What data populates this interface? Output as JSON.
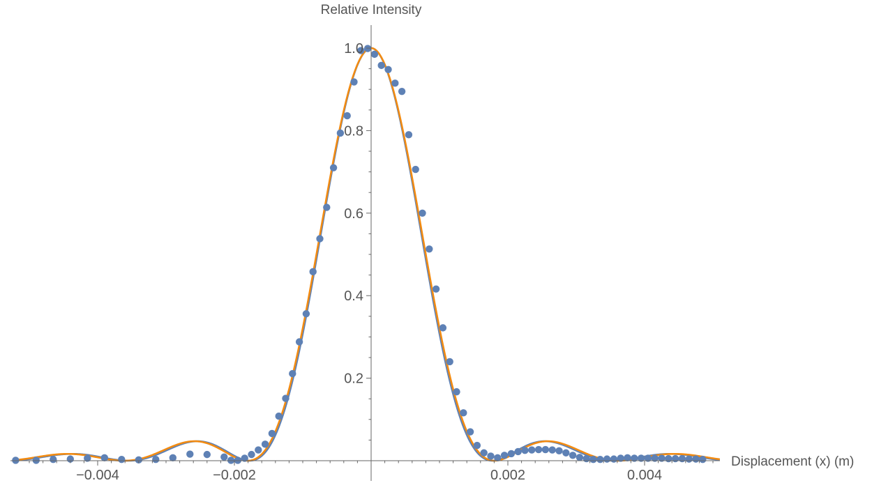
{
  "chart_data": {
    "type": "scatter",
    "xlabel": "Displacement (x) (m)",
    "ylabel": "Relative Intensity",
    "xlim": [
      -0.0051,
      0.0051
    ],
    "ylim": [
      0,
      1.05
    ],
    "grid": false,
    "legend": "none",
    "x_ticks": [
      {
        "value": -0.004,
        "label": "−0.004"
      },
      {
        "value": -0.002,
        "label": "−0.002"
      },
      {
        "value": 0.002,
        "label": "0.002"
      },
      {
        "value": 0.004,
        "label": "0.004"
      }
    ],
    "y_ticks": [
      {
        "value": 0.2,
        "label": "0.2"
      },
      {
        "value": 0.4,
        "label": "0.4"
      },
      {
        "value": 0.6,
        "label": "0.6"
      },
      {
        "value": 0.8,
        "label": "0.8"
      },
      {
        "value": 1.0,
        "label": "1.0"
      }
    ],
    "colors": {
      "points": "#5E81B5",
      "fit_blue": "#5E81B5",
      "fit_orange": "#F28B12",
      "axis": "#666666",
      "text": "#555555"
    },
    "series": [
      {
        "kind": "points",
        "color": "#5E81B5",
        "x": [
          -0.0052,
          -0.0049,
          -0.00465,
          -0.0044,
          -0.00415,
          -0.0039,
          -0.00365,
          -0.0034,
          -0.00315,
          -0.0029,
          -0.00265,
          -0.0024,
          -0.00215,
          -0.00205,
          -0.00195,
          -0.00185,
          -0.00175,
          -0.00165,
          -0.00155,
          -0.00145,
          -0.00135,
          -0.00125,
          -0.00115,
          -0.00105,
          -0.00095,
          -0.00085,
          -0.00075,
          -0.00065,
          -0.00055,
          -0.00045,
          -0.00035,
          -0.00025,
          -0.00015,
          -5e-05,
          5e-05,
          0.00015,
          0.00025,
          0.00035,
          0.00045,
          0.00055,
          0.00065,
          0.00075,
          0.00085,
          0.00095,
          0.00105,
          0.00115,
          0.00125,
          0.00135,
          0.00145,
          0.00155,
          0.00165,
          0.00175,
          0.00185,
          0.00195,
          0.00205,
          0.00215,
          0.00225,
          0.00235,
          0.00245,
          0.00255,
          0.00265,
          0.00275,
          0.00285,
          0.00295,
          0.00305,
          0.00315,
          0.00325,
          0.00335,
          0.00345,
          0.00355,
          0.00365,
          0.00375,
          0.00385,
          0.00395,
          0.00405,
          0.00415,
          0.00425,
          0.00435,
          0.00445,
          0.00455,
          0.00465,
          0.00475,
          0.00485
        ],
        "y": [
          0.001,
          0.001,
          0.003,
          0.004,
          0.006,
          0.007,
          0.003,
          0.002,
          0.003,
          0.007,
          0.016,
          0.015,
          0.009,
          0.001,
          0.001,
          0.006,
          0.015,
          0.026,
          0.04,
          0.066,
          0.108,
          0.151,
          0.211,
          0.288,
          0.356,
          0.458,
          0.538,
          0.614,
          0.71,
          0.794,
          0.836,
          0.918,
          0.994,
          0.999,
          0.985,
          0.958,
          0.948,
          0.915,
          0.895,
          0.79,
          0.706,
          0.6,
          0.513,
          0.416,
          0.322,
          0.24,
          0.167,
          0.116,
          0.07,
          0.037,
          0.019,
          0.011,
          0.007,
          0.013,
          0.017,
          0.022,
          0.025,
          0.026,
          0.027,
          0.027,
          0.026,
          0.024,
          0.019,
          0.013,
          0.008,
          0.005,
          0.003,
          0.003,
          0.004,
          0.004,
          0.006,
          0.007,
          0.006,
          0.006,
          0.006,
          0.006,
          0.006,
          0.005,
          0.005,
          0.005,
          0.004,
          0.004,
          0.003
        ]
      },
      {
        "kind": "line",
        "color": "#5E81B5",
        "a": 1768
      },
      {
        "kind": "line",
        "color": "#F28B12",
        "a": 1740
      }
    ]
  }
}
